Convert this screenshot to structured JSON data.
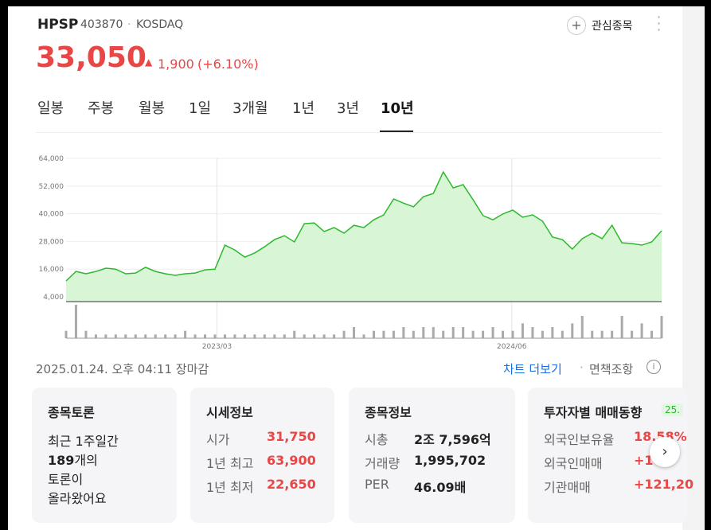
{
  "header": {
    "name": "HPSP",
    "code": "403870",
    "market": "KOSDAQ",
    "watch": "관심종목"
  },
  "price": {
    "current": "33,050",
    "change": "1,900",
    "rate": "(+6.10%)"
  },
  "tabs": [
    "일봉",
    "주봉",
    "월봉",
    "1일",
    "3개월",
    "1년",
    "3년",
    "10년"
  ],
  "chart_data": {
    "type": "area",
    "color": "#2db92d",
    "fill": "#d8f5d6",
    "values": [
      10900,
      15000,
      14000,
      15000,
      16400,
      16000,
      14000,
      14300,
      16800,
      15000,
      14000,
      13300,
      14000,
      14300,
      15700,
      16000,
      26400,
      24300,
      21200,
      23000,
      25700,
      28800,
      30500,
      27800,
      35700,
      36000,
      32300,
      34000,
      31600,
      35000,
      34000,
      37400,
      39500,
      46400,
      44600,
      43000,
      47400,
      48800,
      58100,
      51200,
      52600,
      46100,
      39200,
      37400,
      39900,
      41600,
      38500,
      39500,
      36800,
      29900,
      28800,
      24700,
      29200,
      31600,
      29200,
      35000,
      27400,
      27100,
      26400,
      27800,
      32600
    ],
    "volume": [
      2,
      9,
      2,
      1,
      1,
      1,
      1,
      1,
      1,
      1,
      1,
      1,
      2,
      1,
      1,
      1,
      1,
      1,
      1,
      1,
      1,
      1,
      1,
      2,
      1,
      1,
      1,
      1,
      2,
      3,
      1,
      2,
      2,
      2,
      3,
      2,
      3,
      3,
      2,
      3,
      3,
      2,
      2,
      3,
      2,
      2,
      4,
      3,
      2,
      3,
      2,
      4,
      6,
      2,
      2,
      2,
      6,
      2,
      4,
      2,
      6
    ],
    "ylim": [
      4000,
      64000
    ],
    "yticks": [
      {
        "value": 4000,
        "label": "4,000"
      },
      {
        "value": 16000,
        "label": "16,000"
      },
      {
        "value": 28000,
        "label": "28,000"
      },
      {
        "value": 40000,
        "label": "40,000"
      },
      {
        "value": 52000,
        "label": "52,000"
      },
      {
        "value": 64000,
        "label": "64,000"
      }
    ],
    "xlim": [
      0,
      60
    ],
    "xticks": [
      {
        "value": 15.2,
        "label": "2023/03"
      },
      {
        "value": 44.9,
        "label": "2024/06"
      }
    ],
    "grid": true
  },
  "status": "2025.01.24. 오후 04:11 장마감",
  "links": {
    "more": "차트 더보기",
    "disclaimer": "면책조항"
  },
  "cards": [
    {
      "title": "종목토론",
      "lines": [
        "최근 1주일간",
        "189",
        "개의",
        "토론이",
        "올라왔어요"
      ]
    },
    {
      "title": "시세정보",
      "rows": [
        [
          "시가",
          "31,750"
        ],
        [
          "1년 최고",
          "63,900"
        ],
        [
          "1년 최저",
          "22,650"
        ]
      ]
    },
    {
      "title": "종목정보",
      "rows": [
        [
          "시총",
          "2조 7,596억"
        ],
        [
          "거래량",
          "1,995,702"
        ],
        [
          "PER",
          "46.09배"
        ]
      ]
    },
    {
      "title": "투자자별 매매동향",
      "badge": "25.",
      "rows": [
        [
          "외국인보유율",
          "18.58%"
        ],
        [
          "외국인매매",
          "+1"
        ],
        [
          "기관매매",
          "+121,20"
        ]
      ]
    }
  ]
}
